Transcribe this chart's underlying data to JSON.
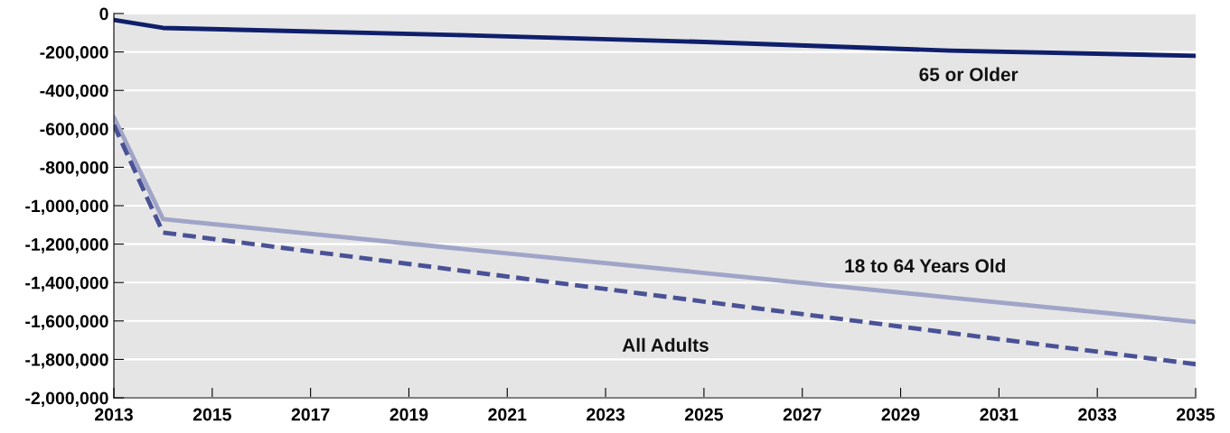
{
  "chart_data": {
    "type": "line",
    "x": [
      2013,
      2014,
      2020,
      2025,
      2030,
      2035
    ],
    "series": [
      {
        "name": "65 or Older",
        "color": "#0f1f6b",
        "line_style": "solid",
        "values": [
          -33000,
          -75000,
          -112000,
          -148000,
          -193000,
          -220000
        ]
      },
      {
        "name": "18 to 64 Years Old",
        "color": "#a0a5c8",
        "line_style": "solid",
        "values": [
          -540000,
          -1070000,
          -1223000,
          -1350000,
          -1478000,
          -1605000
        ]
      },
      {
        "name": "All Adults",
        "color": "#4a5296",
        "line_style": "dashed",
        "values": [
          -580000,
          -1140000,
          -1336000,
          -1499000,
          -1662000,
          -1825000
        ]
      }
    ],
    "xlim": [
      2013,
      2035
    ],
    "xticks": [
      2013,
      2015,
      2017,
      2019,
      2021,
      2023,
      2025,
      2027,
      2029,
      2031,
      2033,
      2035
    ],
    "ylim": [
      -2000000,
      0
    ],
    "yticks": [
      {
        "value": -2000000,
        "label": "-2,000,000"
      },
      {
        "value": -1800000,
        "label": "-1,800,000"
      },
      {
        "value": -1600000,
        "label": "-1,600,000"
      },
      {
        "value": -1400000,
        "label": "-1,400,000"
      },
      {
        "value": -1200000,
        "label": "-1,200,000"
      },
      {
        "value": -1000000,
        "label": "-1,000,000"
      },
      {
        "value": -800000,
        "label": "-800,000"
      },
      {
        "value": -600000,
        "label": "-600,000"
      },
      {
        "value": -400000,
        "label": "-400,000"
      },
      {
        "value": -200000,
        "label": "-200,000"
      },
      0
    ],
    "grid": "y",
    "marker": "none",
    "legend": false
  }
}
